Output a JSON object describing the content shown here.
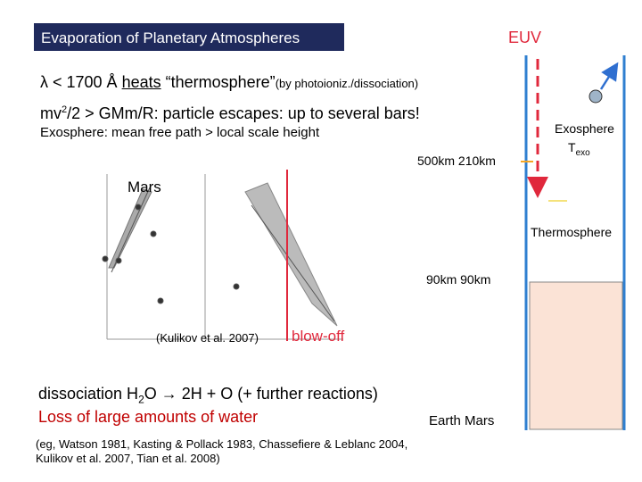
{
  "title": "Evaporation of Planetary Atmospheres",
  "euv": "EUV",
  "line1": {
    "a": "λ < 1700 Å ",
    "b": "heats",
    "c": " “thermosphere”",
    "d": "(by photoioniz./dissociation)"
  },
  "line2": {
    "a": "mv",
    "b": "2",
    "c": "/2  > GMm/R: particle escapes: up to several bars!"
  },
  "exosphere_def": "Exosphere: mean free path > local scale height",
  "heights_top": "500km  210km",
  "exosphere_label": "Exosphere",
  "texo": {
    "a": "T",
    "b": "exo"
  },
  "mars_label": "Mars",
  "thermosphere_label": "Thermosphere",
  "heights_bottom": "90km   90km",
  "citation": "(Kulikov et al. 2007)",
  "blowoff": "blow-off",
  "dissociation": {
    "a": "dissociation H",
    "b": "2",
    "c": "O ",
    "d": "→",
    "e": " 2H + O (+ further reactions)"
  },
  "loss": "Loss of large amounts of water",
  "planets": "Earth   Mars",
  "references": [
    "(eg, Watson 1981, Kasting & Pollack 1983, Chassefiere & Leblanc 2004,",
    "Kulikov et al. 2007, Tian et al.  2008)"
  ]
}
